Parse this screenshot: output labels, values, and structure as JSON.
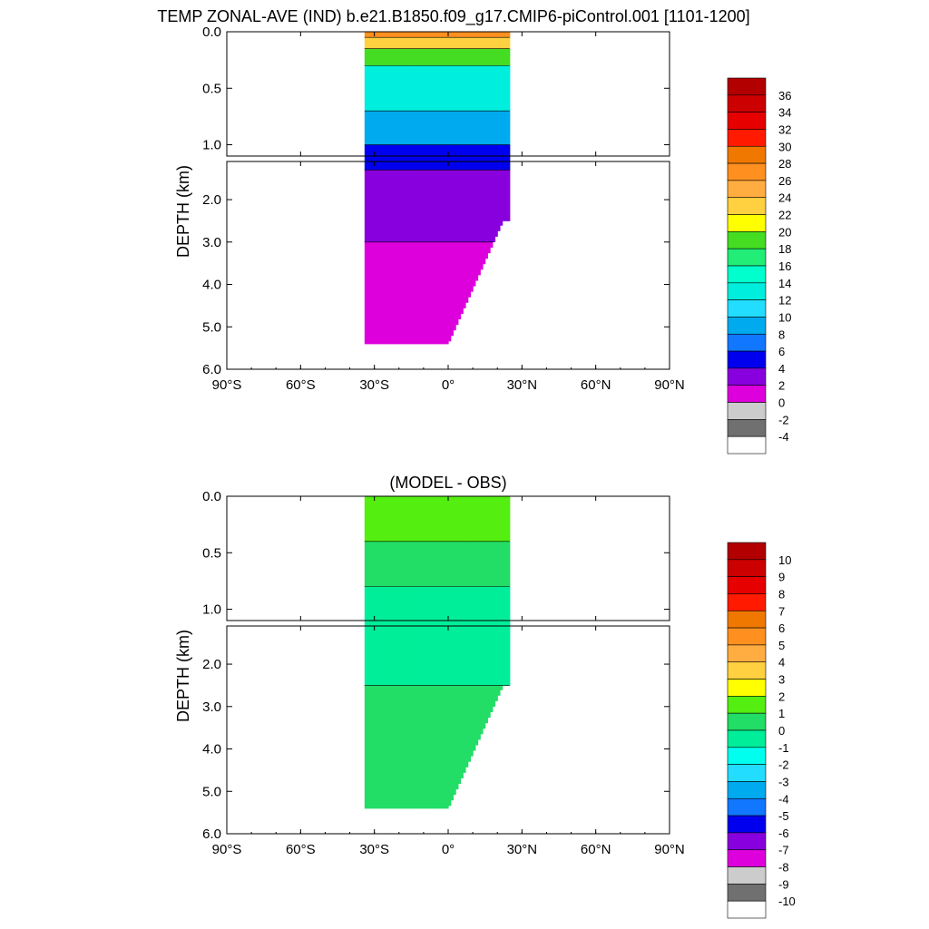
{
  "figure": {
    "main_title": "TEMP ZONAL-AVE (IND) b.e21.B1850.f09_g17.CMIP6-piControl.001 [1101-1200]"
  },
  "chart_data": [
    {
      "type": "heatmap",
      "title": "TEMP ZONAL-AVE (IND) b.e21.B1850.f09_g17.CMIP6-piControl.001 [1101-1200]",
      "xlabel": "",
      "ylabel": "DEPTH (km)",
      "x_ticks": [
        "90°S",
        "60°S",
        "30°S",
        "0°",
        "30°N",
        "60°N",
        "90°N"
      ],
      "x_tick_values": [
        -90,
        -60,
        -30,
        0,
        30,
        60,
        90
      ],
      "xlim": [
        -90,
        90
      ],
      "upper_panel": {
        "ylim": [
          0.0,
          1.1
        ],
        "y_ticks": [
          "0.0",
          "0.5",
          "1.0"
        ],
        "y_tick_values": [
          0.0,
          0.5,
          1.0
        ]
      },
      "lower_panel": {
        "ylim": [
          1.1,
          6.0
        ],
        "y_ticks": [
          "2.0",
          "3.0",
          "4.0",
          "5.0",
          "6.0"
        ],
        "y_tick_values": [
          2.0,
          3.0,
          4.0,
          5.0,
          6.0
        ]
      },
      "data_extent": {
        "lat_min": -34,
        "lat_max": 25,
        "max_depth_km": 5.4
      },
      "colorbar": {
        "levels": [
          "36",
          "34",
          "32",
          "30",
          "28",
          "26",
          "24",
          "22",
          "20",
          "18",
          "16",
          "14",
          "12",
          "10",
          "8",
          "6",
          "4",
          "2",
          "0",
          "-2",
          "-4"
        ],
        "colors": [
          "#b20000",
          "#cc0000",
          "#e60000",
          "#ff1a00",
          "#f07800",
          "#ff9020",
          "#ffad40",
          "#ffd040",
          "#ffff00",
          "#44dd22",
          "#22ee77",
          "#00ffcc",
          "#00eedd",
          "#22ddff",
          "#00aaee",
          "#1177ff",
          "#0000ee",
          "#8800dd",
          "#dd00dd",
          "#cccccc",
          "#707070",
          "#ffffff"
        ]
      },
      "field_bands": [
        {
          "value": 26,
          "depth_range_km": [
            0.0,
            0.05
          ]
        },
        {
          "value": 22,
          "depth_range_km": [
            0.05,
            0.15
          ]
        },
        {
          "value": 18,
          "depth_range_km": [
            0.15,
            0.3
          ]
        },
        {
          "value": 12,
          "depth_range_km": [
            0.3,
            0.7
          ]
        },
        {
          "value": 8,
          "depth_range_km": [
            0.7,
            1.0
          ]
        },
        {
          "value": 5,
          "depth_range_km": [
            1.0,
            1.3
          ]
        },
        {
          "value": 3,
          "depth_range_km": [
            1.3,
            3.0
          ]
        },
        {
          "value": 1,
          "depth_range_km": [
            3.0,
            5.4
          ]
        }
      ]
    },
    {
      "type": "heatmap",
      "title": "(MODEL - OBS)",
      "xlabel": "",
      "ylabel": "DEPTH (km)",
      "x_ticks": [
        "90°S",
        "60°S",
        "30°S",
        "0°",
        "30°N",
        "60°N",
        "90°N"
      ],
      "x_tick_values": [
        -90,
        -60,
        -30,
        0,
        30,
        60,
        90
      ],
      "xlim": [
        -90,
        90
      ],
      "upper_panel": {
        "ylim": [
          0.0,
          1.1
        ],
        "y_ticks": [
          "0.0",
          "0.5",
          "1.0"
        ],
        "y_tick_values": [
          0.0,
          0.5,
          1.0
        ]
      },
      "lower_panel": {
        "ylim": [
          1.1,
          6.0
        ],
        "y_ticks": [
          "2.0",
          "3.0",
          "4.0",
          "5.0",
          "6.0"
        ],
        "y_tick_values": [
          2.0,
          3.0,
          4.0,
          5.0,
          6.0
        ]
      },
      "data_extent": {
        "lat_min": -34,
        "lat_max": 25,
        "max_depth_km": 5.4
      },
      "colorbar": {
        "levels": [
          "10",
          "9",
          "8",
          "7",
          "6",
          "5",
          "4",
          "3",
          "2",
          "1",
          "0",
          "-1",
          "-2",
          "-3",
          "-4",
          "-5",
          "-6",
          "-7",
          "-8",
          "-9",
          "-10"
        ],
        "colors": [
          "#b20000",
          "#cc0000",
          "#e60000",
          "#ff1a00",
          "#f07800",
          "#ff9020",
          "#ffad40",
          "#ffd040",
          "#ffff00",
          "#55ee11",
          "#22dd66",
          "#00ee99",
          "#00ffee",
          "#22ddff",
          "#00aaee",
          "#1177ff",
          "#0000ee",
          "#8800dd",
          "#dd00dd",
          "#cccccc",
          "#707070",
          "#ffffff"
        ]
      },
      "field_bands": [
        {
          "value": 1.5,
          "depth_range_km": [
            0.0,
            0.4
          ]
        },
        {
          "value": 0.5,
          "depth_range_km": [
            0.4,
            0.8
          ]
        },
        {
          "value": -0.5,
          "depth_range_km": [
            0.8,
            2.5
          ]
        },
        {
          "value": 0.5,
          "depth_range_km": [
            2.5,
            5.4
          ]
        }
      ]
    }
  ]
}
